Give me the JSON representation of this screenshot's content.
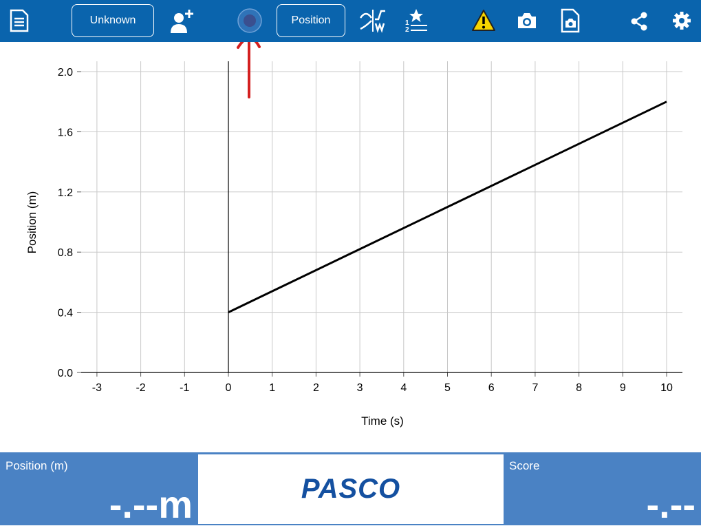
{
  "toolbar": {
    "left_button_label": "Unknown",
    "right_button_label": "Position",
    "icons": [
      "document-icon",
      "add-user-icon",
      "record-icon",
      "position-button",
      "curve-fit-icon",
      "ranking-icon",
      "warning-icon",
      "camera-icon",
      "snapshot-icon",
      "share-icon",
      "gear-icon"
    ],
    "colors": {
      "bar": "#0a64ad",
      "record": "#3a4f8f",
      "warning": "#f6d400"
    }
  },
  "annotation": {
    "color": "#d42020"
  },
  "graph": {
    "y_ticks": [
      "2.0",
      "1.6",
      "1.2",
      "0.8",
      "0.4",
      "0.0"
    ],
    "x_ticks": [
      "-3",
      "-2",
      "-1",
      "0",
      "1",
      "2",
      "3",
      "4",
      "5",
      "6",
      "7",
      "8",
      "9",
      "10"
    ]
  },
  "chart_data": {
    "type": "line",
    "xlabel": "Time (s)",
    "ylabel": "Position (m)",
    "xlim": [
      -3,
      10
    ],
    "ylim": [
      0,
      2.0
    ],
    "grid": true,
    "series": [
      {
        "x": [
          0,
          10
        ],
        "y": [
          0.4,
          1.8
        ]
      }
    ]
  },
  "bottom": {
    "position_title": "Position (m)",
    "position_value": "-.--m",
    "logo_text": "PASCO",
    "score_title": "Score",
    "score_value": "-.--"
  }
}
